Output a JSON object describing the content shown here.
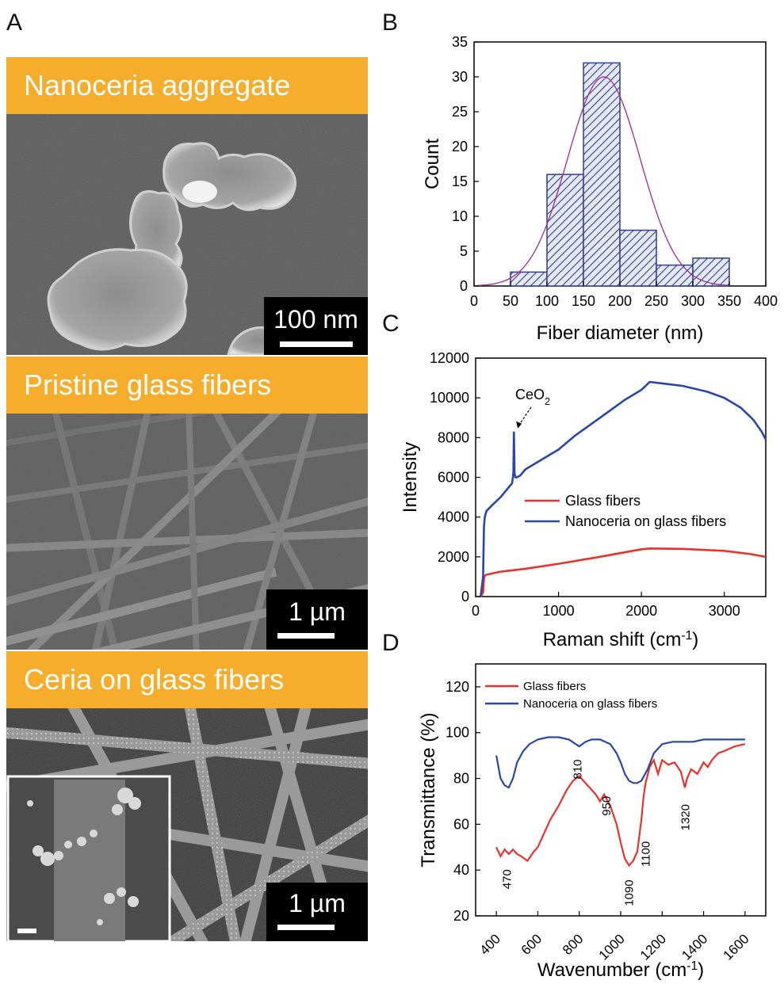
{
  "panels": {
    "A": {
      "letter": "A",
      "images": [
        {
          "title": "Nanoceria aggregate",
          "scale_label": "100 nm"
        },
        {
          "title": "Pristine glass fibers",
          "scale_label": "1 µm"
        },
        {
          "title": "Ceria on glass fibers",
          "scale_label": "1 µm"
        }
      ]
    },
    "B": {
      "letter": "B"
    },
    "C": {
      "letter": "C"
    },
    "D": {
      "letter": "D"
    }
  },
  "colors": {
    "sem_header": "#f5ad2b",
    "hist_fill": "#2e3f8f",
    "fit_curve": "#9b2c9b",
    "red": "#e8322e",
    "blue": "#2a46a8"
  },
  "chart_data": [
    {
      "id": "B",
      "type": "bar",
      "xlabel": "Fiber diameter (nm)",
      "ylabel": "Count",
      "xlim": [
        0,
        400
      ],
      "ylim": [
        0,
        35
      ],
      "xticks": [
        0,
        50,
        100,
        150,
        200,
        250,
        300,
        350,
        400
      ],
      "yticks": [
        0,
        5,
        10,
        15,
        20,
        25,
        30,
        35
      ],
      "bins": [
        {
          "from": 50,
          "to": 100,
          "count": 2
        },
        {
          "from": 100,
          "to": 150,
          "count": 16
        },
        {
          "from": 150,
          "to": 200,
          "count": 32
        },
        {
          "from": 200,
          "to": 250,
          "count": 8
        },
        {
          "from": 250,
          "to": 300,
          "count": 3
        },
        {
          "from": 300,
          "to": 350,
          "count": 4
        }
      ],
      "fit": {
        "type": "gaussian",
        "center": 178,
        "sigma": 50,
        "peak": 30
      }
    },
    {
      "id": "C",
      "type": "line",
      "xlabel": "Raman shift (cm",
      "xlabel_sup": "-1",
      "xlabel_end": ")",
      "ylabel": "Intensity",
      "xlim": [
        0,
        3500
      ],
      "ylim": [
        0,
        12000
      ],
      "xticks": [
        0,
        1000,
        2000,
        3000
      ],
      "yticks": [
        0,
        2000,
        4000,
        6000,
        8000,
        10000,
        12000
      ],
      "legend_position": "center-right",
      "annotation": {
        "text": "CeO",
        "sub": "2",
        "x": 470,
        "y": 8300
      },
      "series": [
        {
          "name": "Glass fibers",
          "color": "#e8322e",
          "x": [
            60,
            90,
            100,
            110,
            130,
            300,
            600,
            1000,
            1500,
            2000,
            2100,
            2500,
            3000,
            3300,
            3500
          ],
          "y": [
            0,
            200,
            900,
            1050,
            1100,
            1250,
            1400,
            1650,
            2000,
            2380,
            2420,
            2400,
            2300,
            2150,
            2000
          ]
        },
        {
          "name": "Nanoceria on glass fibers",
          "color": "#2a46a8",
          "x": [
            60,
            90,
            100,
            110,
            130,
            200,
            300,
            400,
            440,
            455,
            462,
            470,
            480,
            500,
            540,
            600,
            800,
            1000,
            1200,
            1500,
            1800,
            2000,
            2100,
            2300,
            2500,
            2800,
            3000,
            3200,
            3350,
            3450,
            3500
          ],
          "y": [
            0,
            1000,
            3500,
            4000,
            4300,
            4600,
            5000,
            5500,
            5700,
            6200,
            8300,
            6200,
            6000,
            6000,
            6100,
            6400,
            6900,
            7400,
            8100,
            9000,
            9900,
            10400,
            10800,
            10700,
            10600,
            10300,
            10000,
            9500,
            8900,
            8300,
            7900
          ]
        }
      ]
    },
    {
      "id": "D",
      "type": "line",
      "xlabel": "Wavenumber (cm",
      "xlabel_sup": "-1",
      "xlabel_end": ")",
      "ylabel": "Transmittance (%)",
      "xlim": [
        300,
        1700
      ],
      "ylim": [
        20,
        130
      ],
      "xticks": [
        400,
        600,
        800,
        1000,
        1200,
        1400,
        1600
      ],
      "yticks": [
        20,
        40,
        60,
        80,
        100,
        120
      ],
      "legend_position": "top-left",
      "annotations": [
        {
          "text": "470",
          "x": 470,
          "y": 36
        },
        {
          "text": "810",
          "x": 810,
          "y": 84
        },
        {
          "text": "950",
          "x": 950,
          "y": 68
        },
        {
          "text": "1090",
          "x": 1060,
          "y": 30
        },
        {
          "text": "1100",
          "x": 1140,
          "y": 47
        },
        {
          "text": "1320",
          "x": 1330,
          "y": 63
        }
      ],
      "series": [
        {
          "name": "Glass fibers",
          "color": "#e8322e",
          "x": [
            400,
            420,
            440,
            460,
            480,
            500,
            520,
            550,
            580,
            600,
            630,
            660,
            700,
            740,
            770,
            800,
            820,
            850,
            880,
            900,
            920,
            950,
            980,
            1000,
            1020,
            1040,
            1060,
            1080,
            1100,
            1110,
            1120,
            1140,
            1160,
            1180,
            1200,
            1230,
            1260,
            1290,
            1310,
            1320,
            1340,
            1370,
            1400,
            1420,
            1440,
            1470,
            1500,
            1550,
            1600
          ],
          "y": [
            50,
            46,
            49,
            47,
            49,
            47,
            46,
            44,
            48,
            50,
            56,
            62,
            68,
            75,
            79,
            81,
            79,
            76,
            73,
            70,
            73,
            68,
            60,
            52,
            45,
            42,
            44,
            48,
            62,
            72,
            78,
            85,
            88,
            82,
            88,
            86,
            87,
            83,
            76,
            80,
            84,
            82,
            87,
            85,
            88,
            91,
            92,
            94,
            95
          ]
        },
        {
          "name": "Nanoceria on glass fibers",
          "color": "#2a46a8",
          "x": [
            400,
            410,
            420,
            440,
            460,
            480,
            500,
            530,
            560,
            600,
            650,
            700,
            750,
            800,
            830,
            860,
            900,
            950,
            980,
            1000,
            1020,
            1040,
            1060,
            1080,
            1100,
            1130,
            1160,
            1200,
            1250,
            1300,
            1350,
            1400,
            1500,
            1600
          ],
          "y": [
            90,
            85,
            80,
            77,
            76,
            80,
            87,
            92,
            95,
            97,
            98,
            98,
            97,
            94,
            96,
            97,
            97,
            95,
            91,
            87,
            82,
            79,
            78,
            78,
            79,
            84,
            91,
            95,
            96,
            96,
            96,
            97,
            97,
            97
          ]
        }
      ]
    }
  ]
}
